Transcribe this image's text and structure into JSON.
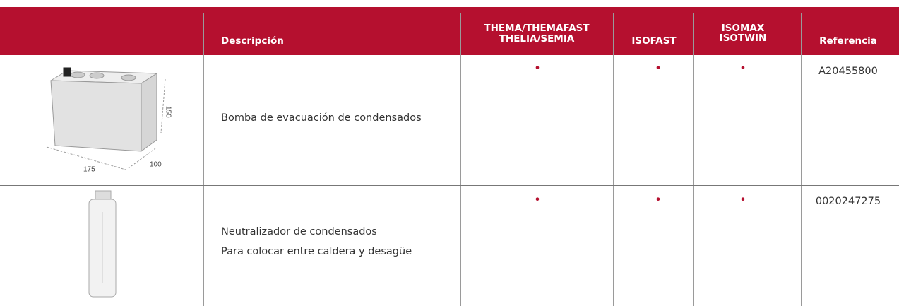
{
  "table": {
    "header": [
      "Descripción",
      [
        "THEMA/THEMAFAST",
        "THELIA/SEMIA"
      ],
      "ISOFAST",
      [
        "ISOMAX",
        "ISOTWIN"
      ],
      "Referencia"
    ],
    "rows": [
      {
        "image_labels": [
          "175",
          "100",
          "150"
        ],
        "description": [
          "Bomba de evacuación de condensados"
        ],
        "marks": [
          "•",
          "•",
          "•"
        ],
        "reference": "A20455800"
      },
      {
        "description": [
          "Neutralizador de condensados",
          "Para colocar entre caldera y desagüe"
        ],
        "marks": [
          "•",
          "•",
          "•"
        ],
        "reference": "0020247275"
      }
    ]
  }
}
